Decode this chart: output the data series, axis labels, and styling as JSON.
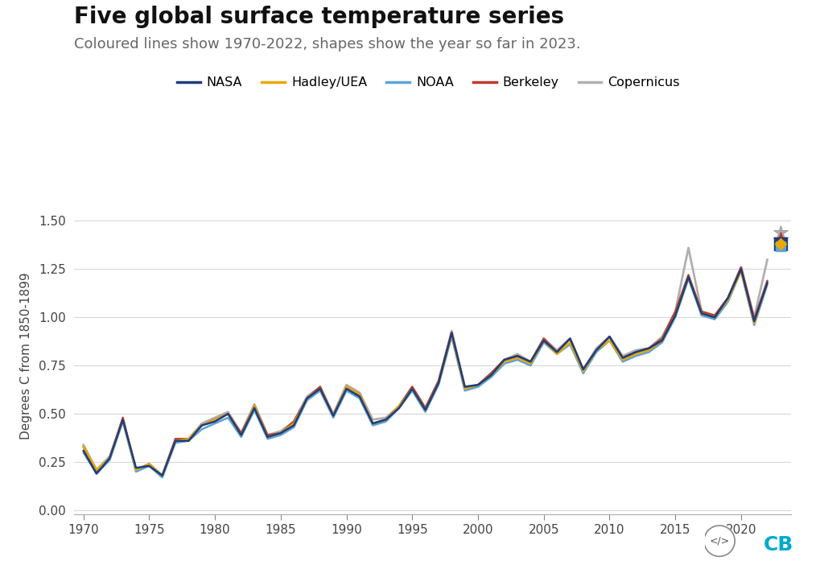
{
  "title": "Five global surface temperature series",
  "subtitle": "Coloured lines show 1970-2022, shapes show the year so far in 2023.",
  "ylabel": "Degrees C from 1850-1899",
  "background_color": "#ffffff",
  "title_fontsize": 20,
  "subtitle_fontsize": 13,
  "years": [
    1970,
    1971,
    1972,
    1973,
    1974,
    1975,
    1976,
    1977,
    1978,
    1979,
    1980,
    1981,
    1982,
    1983,
    1984,
    1985,
    1986,
    1987,
    1988,
    1989,
    1990,
    1991,
    1992,
    1993,
    1994,
    1995,
    1996,
    1997,
    1998,
    1999,
    2000,
    2001,
    2002,
    2003,
    2004,
    2005,
    2006,
    2007,
    2008,
    2009,
    2010,
    2011,
    2012,
    2013,
    2014,
    2015,
    2016,
    2017,
    2018,
    2019,
    2020,
    2021,
    2022
  ],
  "NASA": [
    0.31,
    0.19,
    0.27,
    0.47,
    0.22,
    0.23,
    0.18,
    0.36,
    0.36,
    0.44,
    0.46,
    0.5,
    0.39,
    0.53,
    0.38,
    0.4,
    0.44,
    0.58,
    0.63,
    0.49,
    0.63,
    0.59,
    0.45,
    0.47,
    0.53,
    0.63,
    0.52,
    0.66,
    0.92,
    0.64,
    0.65,
    0.7,
    0.78,
    0.8,
    0.77,
    0.88,
    0.82,
    0.89,
    0.73,
    0.83,
    0.9,
    0.79,
    0.82,
    0.84,
    0.88,
    1.01,
    1.21,
    1.02,
    1.0,
    1.1,
    1.25,
    0.98,
    1.18
  ],
  "Hadley": [
    0.33,
    0.21,
    0.27,
    0.47,
    0.21,
    0.24,
    0.18,
    0.36,
    0.37,
    0.44,
    0.47,
    0.5,
    0.39,
    0.54,
    0.38,
    0.4,
    0.45,
    0.58,
    0.63,
    0.49,
    0.64,
    0.6,
    0.45,
    0.47,
    0.54,
    0.63,
    0.52,
    0.66,
    0.91,
    0.63,
    0.65,
    0.7,
    0.77,
    0.79,
    0.76,
    0.88,
    0.81,
    0.87,
    0.72,
    0.83,
    0.88,
    0.78,
    0.81,
    0.83,
    0.88,
    1.01,
    1.21,
    1.02,
    1.0,
    1.09,
    1.24,
    0.97,
    1.18
  ],
  "NOAA": [
    0.3,
    0.19,
    0.26,
    0.46,
    0.2,
    0.23,
    0.17,
    0.35,
    0.36,
    0.42,
    0.45,
    0.48,
    0.38,
    0.52,
    0.37,
    0.39,
    0.43,
    0.57,
    0.62,
    0.48,
    0.62,
    0.58,
    0.44,
    0.46,
    0.53,
    0.62,
    0.51,
    0.65,
    0.9,
    0.62,
    0.64,
    0.69,
    0.76,
    0.78,
    0.75,
    0.87,
    0.81,
    0.86,
    0.71,
    0.82,
    0.88,
    0.77,
    0.8,
    0.82,
    0.87,
    1.0,
    1.2,
    1.01,
    0.99,
    1.08,
    1.24,
    0.96,
    1.17
  ],
  "Berkeley": [
    0.33,
    0.2,
    0.27,
    0.48,
    0.21,
    0.24,
    0.18,
    0.37,
    0.37,
    0.44,
    0.47,
    0.5,
    0.4,
    0.54,
    0.39,
    0.4,
    0.46,
    0.58,
    0.64,
    0.49,
    0.64,
    0.6,
    0.45,
    0.47,
    0.54,
    0.64,
    0.53,
    0.67,
    0.92,
    0.63,
    0.65,
    0.71,
    0.78,
    0.8,
    0.77,
    0.89,
    0.82,
    0.89,
    0.73,
    0.83,
    0.9,
    0.79,
    0.82,
    0.84,
    0.89,
    1.03,
    1.22,
    1.03,
    1.01,
    1.1,
    1.26,
    0.99,
    1.19
  ],
  "Copernicus": [
    0.34,
    0.21,
    0.28,
    0.47,
    0.21,
    0.24,
    0.18,
    0.37,
    0.37,
    0.45,
    0.48,
    0.51,
    0.4,
    0.55,
    0.39,
    0.41,
    0.46,
    0.59,
    0.64,
    0.5,
    0.65,
    0.61,
    0.47,
    0.48,
    0.54,
    0.64,
    0.53,
    0.67,
    0.93,
    0.64,
    0.65,
    0.71,
    0.78,
    0.81,
    0.77,
    0.89,
    0.83,
    0.89,
    0.73,
    0.84,
    0.9,
    0.8,
    0.83,
    0.84,
    0.9,
    1.03,
    1.36,
    1.03,
    1.01,
    1.1,
    1.26,
    1.0,
    1.3
  ],
  "colors": {
    "NASA": "#1f3d7a",
    "Hadley": "#e8a800",
    "NOAA": "#5ba3d9",
    "Berkeley": "#c0392b",
    "Copernicus": "#b0b0b0"
  },
  "marker_2023": {
    "NASA": 1.38,
    "Hadley": 1.38,
    "NOAA": 1.37,
    "Berkeley": 1.4,
    "Copernicus": 1.44
  },
  "ylim": [
    -0.02,
    1.62
  ],
  "yticks": [
    0.0,
    0.25,
    0.5,
    0.75,
    1.0,
    1.25,
    1.5
  ],
  "xlim": [
    1969.3,
    2023.8
  ],
  "xticks": [
    1970,
    1975,
    1980,
    1985,
    1990,
    1995,
    2000,
    2005,
    2010,
    2015,
    2020
  ]
}
